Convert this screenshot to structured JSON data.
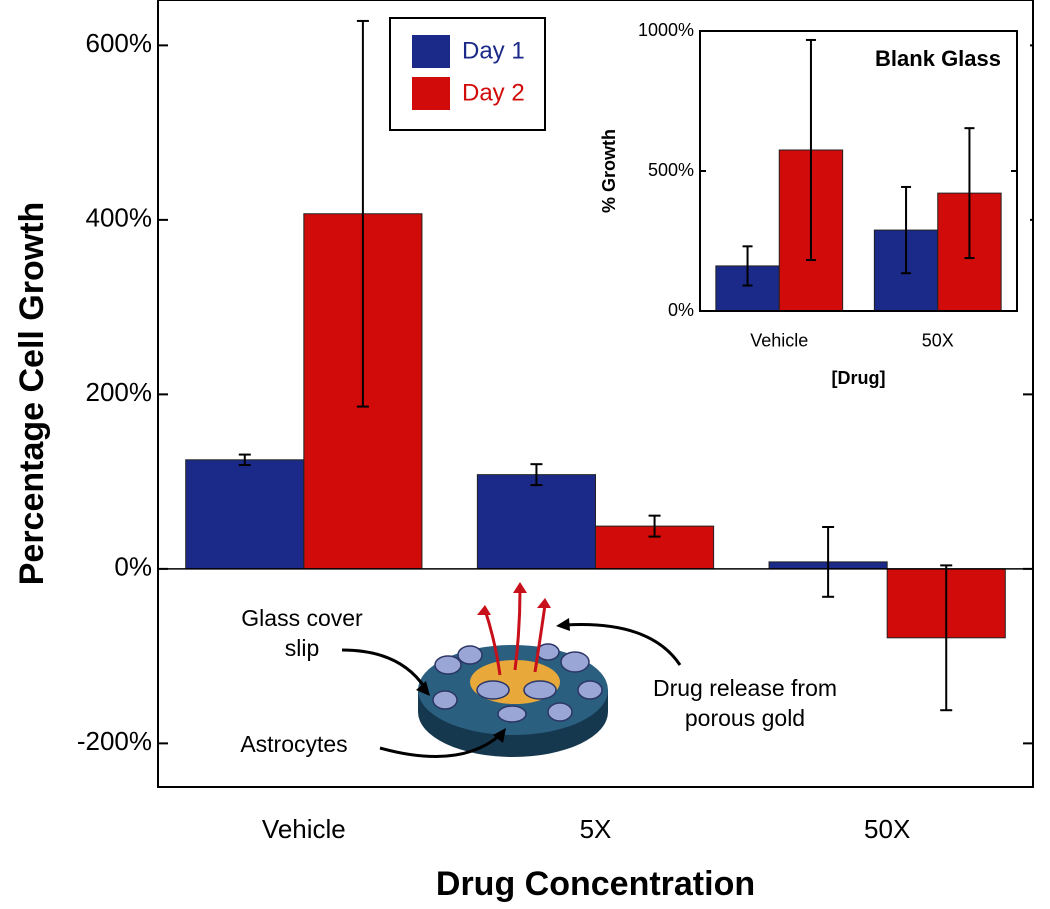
{
  "chart_data": [
    {
      "type": "bar",
      "x_label": "Drug Concentration",
      "y_label": "Percentage Cell Growth",
      "categories": [
        "Vehicle",
        "5X",
        "50X"
      ],
      "series": [
        {
          "name": "Day 1",
          "color": "#1b2a88",
          "values": [
            125,
            108,
            8
          ],
          "errors": [
            6,
            12,
            40
          ]
        },
        {
          "name": "Day 2",
          "color": "#d10a0a",
          "values": [
            407,
            49,
            -79
          ],
          "errors": [
            221,
            12,
            83
          ]
        }
      ],
      "ylim": [
        -250,
        652
      ],
      "yticks": [
        {
          "value": -200,
          "label": "-200%"
        },
        {
          "value": 0,
          "label": "0%"
        },
        {
          "value": 200,
          "label": "200%"
        },
        {
          "value": 400,
          "label": "400%"
        },
        {
          "value": 600,
          "label": "600%"
        }
      ],
      "legend": "upper left",
      "annotations": [
        {
          "lines": [
            "Glass cover",
            "slip"
          ]
        },
        {
          "lines": [
            "Astrocytes"
          ]
        },
        {
          "lines": [
            "Drug release from",
            "porous gold"
          ]
        }
      ]
    },
    {
      "type": "bar",
      "title": "Blank Glass",
      "x_label": "[Drug]",
      "y_label": "% Growth",
      "categories": [
        "Vehicle",
        "50X"
      ],
      "series": [
        {
          "name": "Day 1",
          "color": "#1b2a88",
          "values": [
            161,
            289
          ],
          "errors": [
            70,
            154
          ]
        },
        {
          "name": "Day 2",
          "color": "#d10a0a",
          "values": [
            575,
            421
          ],
          "errors": [
            393,
            232
          ]
        }
      ],
      "ylim": [
        0,
        1000
      ],
      "yticks": [
        {
          "value": 0,
          "label": "0%"
        },
        {
          "value": 500,
          "label": "500%"
        },
        {
          "value": 1000,
          "label": "1000%"
        }
      ]
    }
  ]
}
